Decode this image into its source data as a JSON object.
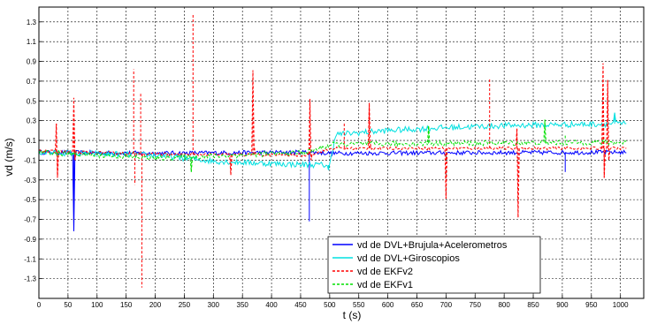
{
  "chart_data": {
    "type": "line",
    "title": "",
    "xlabel": "t (s)",
    "ylabel": "vd (m/s)",
    "xlim": [
      0,
      1040
    ],
    "ylim": [
      -1.5,
      1.45
    ],
    "grid": true,
    "legend_position": "bottom-right",
    "x_ticks": [
      0,
      50,
      100,
      150,
      200,
      250,
      300,
      350,
      400,
      450,
      500,
      550,
      600,
      650,
      700,
      750,
      800,
      850,
      900,
      950,
      1000
    ],
    "y_ticks": [
      -1.3,
      -1.1,
      -0.9,
      -0.7,
      -0.5,
      -0.3,
      -0.1,
      0.1,
      0.3,
      0.5,
      0.7,
      0.9,
      1.1,
      1.3
    ],
    "series": [
      {
        "name": "vd de DVL+Brujula+Acelerometros",
        "color": "#0000ff",
        "dash": "",
        "baseline": [
          [
            0,
            -0.02
          ],
          [
            200,
            -0.03
          ],
          [
            460,
            -0.02
          ],
          [
            500,
            -0.03
          ],
          [
            1010,
            -0.02
          ]
        ],
        "noise": 0.022,
        "spikes": [
          [
            60,
            -0.82
          ],
          [
            465,
            -0.72
          ],
          [
            905,
            -0.22
          ]
        ]
      },
      {
        "name": "vd de DVL+Giroscopios",
        "color": "#00e0e0",
        "dash": "",
        "baseline": [
          [
            0,
            -0.02
          ],
          [
            200,
            -0.05
          ],
          [
            300,
            -0.11
          ],
          [
            420,
            -0.14
          ],
          [
            500,
            -0.15
          ],
          [
            510,
            0.16
          ],
          [
            600,
            0.2
          ],
          [
            700,
            0.23
          ],
          [
            800,
            0.25
          ],
          [
            900,
            0.26
          ],
          [
            1010,
            0.27
          ]
        ],
        "noise": 0.03,
        "spikes": [
          [
            990,
            0.38
          ],
          [
            498,
            -0.2
          ]
        ]
      },
      {
        "name": "vd de EKFv2",
        "color": "#ff0000",
        "dash": "3,2",
        "baseline": [
          [
            0,
            -0.01
          ],
          [
            200,
            -0.04
          ],
          [
            460,
            -0.05
          ],
          [
            505,
            0.02
          ],
          [
            1010,
            0.02
          ]
        ],
        "noise": 0.015,
        "spikes": [
          [
            30,
            0.27
          ],
          [
            32,
            -0.28
          ],
          [
            60,
            0.53
          ],
          [
            62,
            -0.1
          ],
          [
            163,
            0.82
          ],
          [
            165,
            -0.35
          ],
          [
            175,
            0.59
          ],
          [
            177,
            -1.39
          ],
          [
            265,
            1.38
          ],
          [
            267,
            -0.05
          ],
          [
            330,
            -0.25
          ],
          [
            368,
            0.81
          ],
          [
            370,
            0.05
          ],
          [
            466,
            0.52
          ],
          [
            468,
            -0.1
          ],
          [
            525,
            0.27
          ],
          [
            568,
            0.48
          ],
          [
            570,
            0.06
          ],
          [
            700,
            -0.49
          ],
          [
            775,
            0.73
          ],
          [
            822,
            0.22
          ],
          [
            824,
            -0.68
          ],
          [
            970,
            0.88
          ],
          [
            972,
            -0.28
          ],
          [
            978,
            0.71
          ],
          [
            980,
            -0.1
          ]
        ]
      },
      {
        "name": "vd de EKFv1",
        "color": "#00e000",
        "dash": "3,2",
        "baseline": [
          [
            0,
            -0.02
          ],
          [
            200,
            -0.08
          ],
          [
            300,
            -0.06
          ],
          [
            460,
            -0.02
          ],
          [
            505,
            0.06
          ],
          [
            700,
            0.07
          ],
          [
            1010,
            0.08
          ]
        ],
        "noise": 0.025,
        "spikes": [
          [
            262,
            -0.22
          ],
          [
            670,
            0.25
          ],
          [
            870,
            0.31
          ],
          [
            905,
            0.15
          ]
        ]
      }
    ]
  }
}
